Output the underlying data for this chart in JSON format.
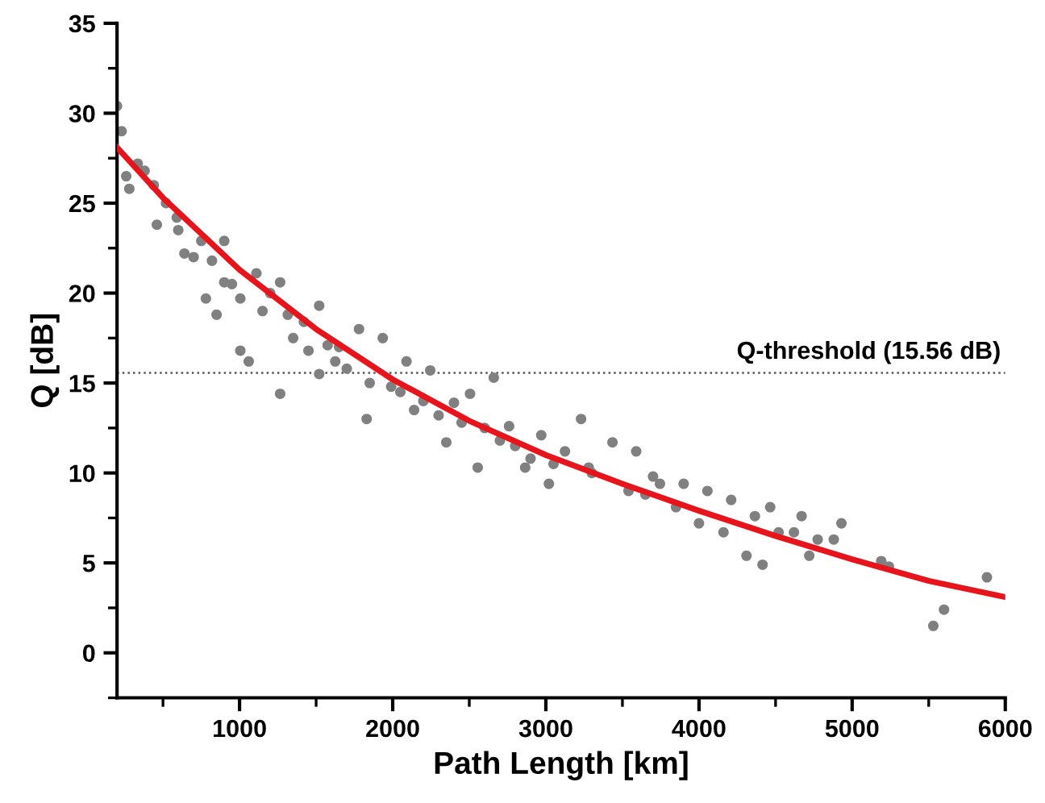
{
  "chart_data": {
    "type": "scatter",
    "xlabel": "Path Length [km]",
    "ylabel": "Q [dB]",
    "xlim": [
      200,
      6000
    ],
    "xticks": [
      1000,
      2000,
      3000,
      4000,
      5000,
      6000
    ],
    "ylim": [
      -2.5,
      35
    ],
    "yticks": [
      0,
      5,
      10,
      15,
      20,
      25,
      30,
      35
    ],
    "grid": false,
    "marker": "circle",
    "series": [
      {
        "color": "#808080",
        "x": [
          200,
          230,
          260,
          280,
          335,
          440,
          460,
          590,
          640,
          700,
          750,
          900,
          780,
          850,
          1005,
          900,
          1110,
          1265,
          1315,
          1005,
          1060,
          1265,
          1420,
          1520,
          1575,
          1520,
          1625,
          1780,
          1935,
          1830,
          1990,
          2090,
          2140,
          2245,
          2350,
          2400,
          2505,
          2555,
          2660,
          2760,
          2865,
          2970,
          3020,
          3125,
          3230,
          3280,
          3435,
          3540,
          3590,
          3745,
          3850,
          3900,
          4000,
          4055,
          4160,
          4210,
          4310,
          4365,
          4415,
          4465,
          4520,
          4620,
          4670,
          4720,
          4775,
          4880,
          4930,
          5190,
          5240,
          5530,
          5600,
          5880,
          380,
          520,
          600,
          820,
          950,
          1150,
          1200,
          1350,
          1450,
          1650,
          1700,
          1850,
          2050,
          2200,
          2300,
          2450,
          2600,
          2700,
          2800,
          2900,
          3050,
          3300,
          3650,
          3700
        ],
        "values": [
          30.4,
          29.0,
          26.5,
          25.8,
          27.2,
          26.0,
          23.8,
          24.2,
          22.2,
          22.0,
          22.9,
          22.9,
          19.7,
          18.8,
          19.7,
          20.6,
          21.1,
          20.6,
          18.8,
          16.8,
          16.2,
          14.4,
          18.4,
          19.3,
          17.1,
          15.5,
          16.2,
          18.0,
          17.5,
          13.0,
          14.8,
          16.2,
          13.5,
          15.7,
          11.7,
          13.9,
          14.4,
          10.3,
          15.3,
          12.6,
          10.3,
          12.1,
          9.4,
          11.2,
          13.0,
          10.3,
          11.7,
          9.0,
          11.2,
          9.4,
          8.1,
          9.4,
          7.2,
          9.0,
          6.7,
          8.5,
          5.4,
          7.6,
          4.9,
          8.1,
          6.7,
          6.7,
          7.6,
          5.4,
          6.3,
          6.3,
          7.2,
          5.1,
          4.8,
          1.5,
          2.4,
          4.2,
          26.8,
          25.0,
          23.5,
          21.8,
          20.5,
          19.0,
          20.0,
          17.5,
          16.8,
          17.0,
          15.8,
          15.0,
          14.5,
          14.0,
          13.2,
          12.8,
          12.5,
          11.8,
          11.5,
          10.8,
          10.5,
          10.0,
          8.8,
          9.8
        ]
      },
      {
        "type": "line",
        "color": "#e8141b",
        "marker": "none",
        "line_style": "solid",
        "x": [
          200,
          500,
          1000,
          1500,
          2000,
          2500,
          3000,
          3500,
          4000,
          4500,
          5000,
          5500,
          6000
        ],
        "values": [
          28.1,
          25.3,
          21.3,
          18.0,
          15.2,
          12.9,
          11.0,
          9.4,
          7.9,
          6.5,
          5.2,
          4.0,
          3.1
        ]
      }
    ],
    "ref_lines": [
      {
        "axis": "y",
        "value": 15.56,
        "label": "Q-threshold (15.56 dB)",
        "color": "#555555",
        "line_style": "dotted"
      }
    ]
  }
}
